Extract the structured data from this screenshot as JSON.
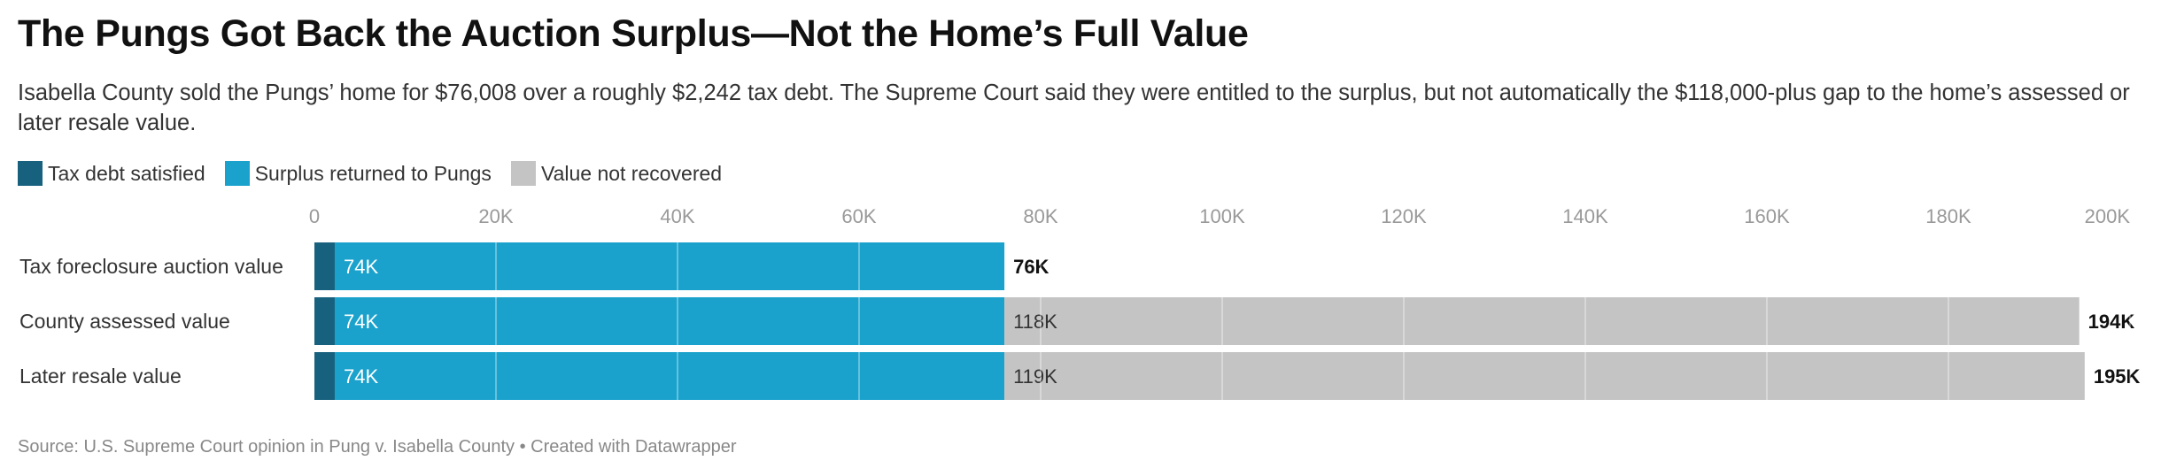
{
  "title": "The Pungs Got Back the Auction Surplus—Not the Home’s Full Value",
  "subtitle": "Isabella County sold the Pungs’ home for $76,008 over a roughly $2,242 tax debt. The Supreme Court said they were entitled to the surplus, but not automatically the $118,000-plus gap to the home’s assessed or later resale value.",
  "source": "Source: U.S. Supreme Court opinion in Pung v. Isabella County • Created with Datawrapper",
  "colors": {
    "tax_debt": "#17607e",
    "surplus": "#1aa2cd",
    "not_recovered": "#c4c4c4"
  },
  "legend": [
    {
      "label": "Tax debt satisfied",
      "color": "#17607e"
    },
    {
      "label": "Surplus returned to Pungs",
      "color": "#1aa2cd"
    },
    {
      "label": "Value not recovered",
      "color": "#c4c4c4"
    }
  ],
  "chart_data": {
    "type": "bar",
    "orientation": "horizontal",
    "stacked": true,
    "categories": [
      "Tax foreclosure auction value",
      "County assessed value",
      "Later resale value"
    ],
    "series": [
      {
        "name": "Tax debt satisfied",
        "values": [
          2242,
          2242,
          2242
        ],
        "labels": [
          "",
          "",
          ""
        ]
      },
      {
        "name": "Surplus returned to Pungs",
        "values": [
          73766,
          73766,
          73766
        ],
        "labels": [
          "74K",
          "74K",
          "74K"
        ]
      },
      {
        "name": "Value not recovered",
        "values": [
          0,
          118400,
          119000
        ],
        "labels": [
          "",
          "118K",
          "119K"
        ]
      }
    ],
    "totals": [
      "76K",
      "194K",
      "195K"
    ],
    "xlim": [
      0,
      200000
    ],
    "xticks": [
      0,
      20000,
      40000,
      60000,
      80000,
      100000,
      120000,
      140000,
      160000,
      180000,
      200000
    ],
    "xtick_labels": [
      "0",
      "20K",
      "40K",
      "60K",
      "80K",
      "100K",
      "120K",
      "140K",
      "160K",
      "180K",
      "200K"
    ],
    "grid": true,
    "legend_position": "top-left"
  }
}
